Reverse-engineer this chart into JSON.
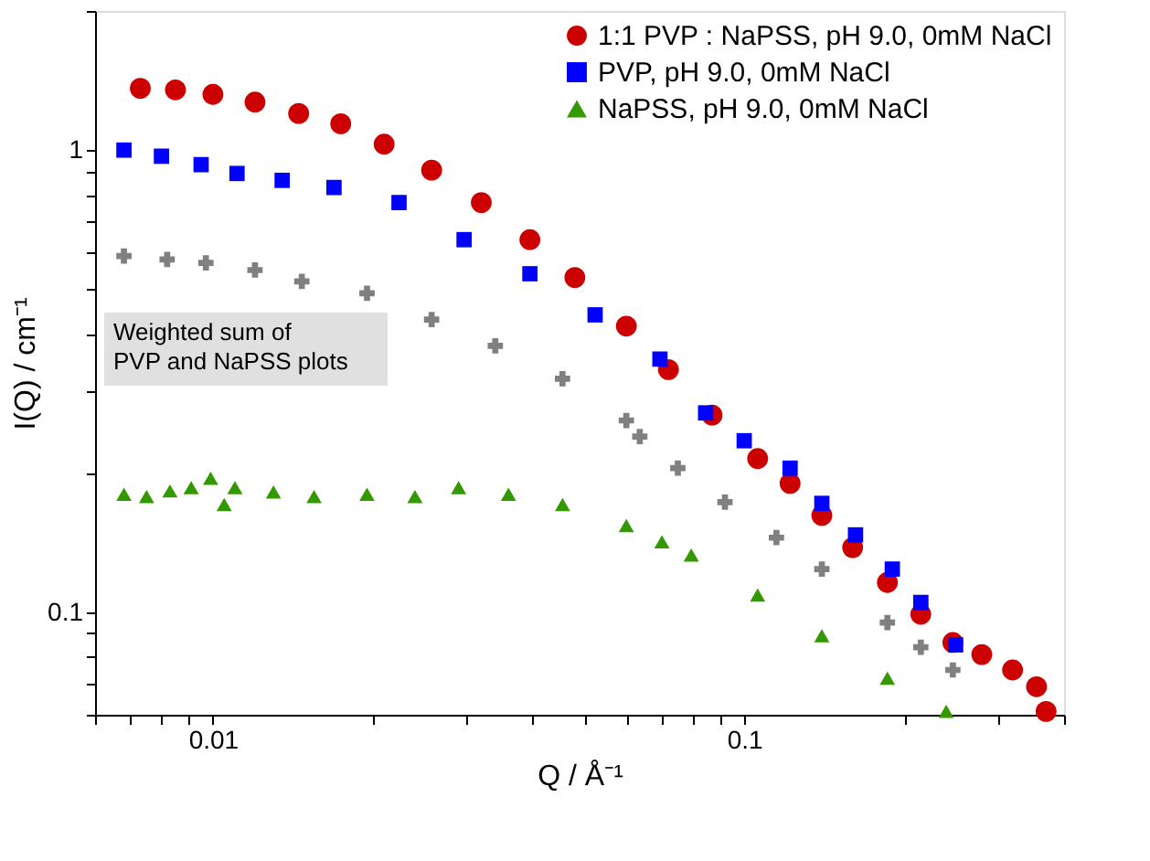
{
  "chart_data": {
    "type": "scatter",
    "xlabel": "Q / Å⁻¹",
    "ylabel": "I(Q) / cm⁻¹",
    "log": "xy",
    "grid": false,
    "legend": "top right",
    "xlim": [
      0.006,
      0.4
    ],
    "ylim": [
      0.06,
      2
    ],
    "xticks": [
      {
        "value": 0.006,
        "label": null
      },
      {
        "value": 0.007,
        "label": null
      },
      {
        "value": 0.008,
        "label": null
      },
      {
        "value": 0.009,
        "label": null
      },
      {
        "value": 0.01,
        "label": "0.01"
      },
      {
        "value": 0.02,
        "label": null
      },
      {
        "value": 0.03,
        "label": null
      },
      {
        "value": 0.04,
        "label": null
      },
      {
        "value": 0.05,
        "label": null
      },
      {
        "value": 0.06,
        "label": null
      },
      {
        "value": 0.07,
        "label": null
      },
      {
        "value": 0.08,
        "label": null
      },
      {
        "value": 0.09,
        "label": null
      },
      {
        "value": 0.1,
        "label": "0.1"
      },
      {
        "value": 0.2,
        "label": null
      },
      {
        "value": 0.3,
        "label": null
      },
      {
        "value": 0.4,
        "label": null
      }
    ],
    "yticks": [
      {
        "value": 0.06,
        "label": null
      },
      {
        "value": 0.07,
        "label": null
      },
      {
        "value": 0.08,
        "label": null
      },
      {
        "value": 0.09,
        "label": null
      },
      {
        "value": 0.1,
        "label": "0.1"
      },
      {
        "value": 0.2,
        "label": null
      },
      {
        "value": 0.3,
        "label": null
      },
      {
        "value": 0.4,
        "label": null
      },
      {
        "value": 0.5,
        "label": null
      },
      {
        "value": 0.6,
        "label": null
      },
      {
        "value": 0.7,
        "label": null
      },
      {
        "value": 0.8,
        "label": null
      },
      {
        "value": 0.9,
        "label": null
      },
      {
        "value": 1,
        "label": "1"
      },
      {
        "value": 2,
        "label": null
      }
    ],
    "annotations": [
      "Weighted sum of\nPVP and NaPSS plots"
    ],
    "series": [
      {
        "name": "1:1 PVP : NaPSS, pH 9.0, 0mM NaCl",
        "color": "#cc0000",
        "marker": "circle",
        "x": [
          0.0073,
          0.0085,
          0.01,
          0.012,
          0.0145,
          0.0174,
          0.021,
          0.0258,
          0.032,
          0.0395,
          0.048,
          0.06,
          0.072,
          0.087,
          0.106,
          0.122,
          0.14,
          0.16,
          0.186,
          0.215,
          0.247,
          0.28,
          0.32,
          0.355,
          0.37
        ],
        "values": [
          1.36,
          1.35,
          1.32,
          1.27,
          1.2,
          1.14,
          1.03,
          0.905,
          0.77,
          0.64,
          0.53,
          0.416,
          0.335,
          0.267,
          0.215,
          0.19,
          0.162,
          0.138,
          0.116,
          0.099,
          0.086,
          0.081,
          0.075,
          0.069,
          0.061
        ]
      },
      {
        "name": "PVP, pH 9.0, 0mM NaCl",
        "color": "#0000ff",
        "marker": "square",
        "x": [
          0.0068,
          0.008,
          0.0095,
          0.0111,
          0.0135,
          0.0169,
          0.0224,
          0.0297,
          0.0395,
          0.0524,
          0.0694,
          0.0846,
          0.1,
          0.122,
          0.14,
          0.162,
          0.19,
          0.215,
          0.25
        ],
        "values": [
          1.0,
          0.97,
          0.93,
          0.89,
          0.86,
          0.83,
          0.77,
          0.64,
          0.54,
          0.44,
          0.353,
          0.27,
          0.235,
          0.205,
          0.172,
          0.147,
          0.124,
          0.105,
          0.085
        ]
      },
      {
        "color": "#808080",
        "marker": "cross",
        "x": [
          0.0068,
          0.0082,
          0.0097,
          0.012,
          0.0147,
          0.0195,
          0.0258,
          0.034,
          0.0455,
          0.06,
          0.0636,
          0.075,
          0.092,
          0.115,
          0.14,
          0.186,
          0.215,
          0.247
        ],
        "values": [
          0.59,
          0.58,
          0.57,
          0.55,
          0.52,
          0.49,
          0.43,
          0.377,
          0.32,
          0.26,
          0.24,
          0.205,
          0.173,
          0.145,
          0.124,
          0.095,
          0.084,
          0.075
        ]
      },
      {
        "name": "NaPSS, pH 9.0, 0mM NaCl",
        "color": "#339900",
        "marker": "triangle",
        "x": [
          0.0068,
          0.0075,
          0.0083,
          0.0091,
          0.0099,
          0.0105,
          0.011,
          0.013,
          0.0155,
          0.0195,
          0.024,
          0.029,
          0.036,
          0.0455,
          0.06,
          0.07,
          0.0795,
          0.106,
          0.14,
          0.186,
          0.24
        ],
        "values": [
          0.18,
          0.178,
          0.183,
          0.186,
          0.195,
          0.171,
          0.186,
          0.182,
          0.178,
          0.18,
          0.178,
          0.186,
          0.18,
          0.171,
          0.154,
          0.142,
          0.133,
          0.109,
          0.089,
          0.072,
          0.061
        ]
      }
    ]
  }
}
